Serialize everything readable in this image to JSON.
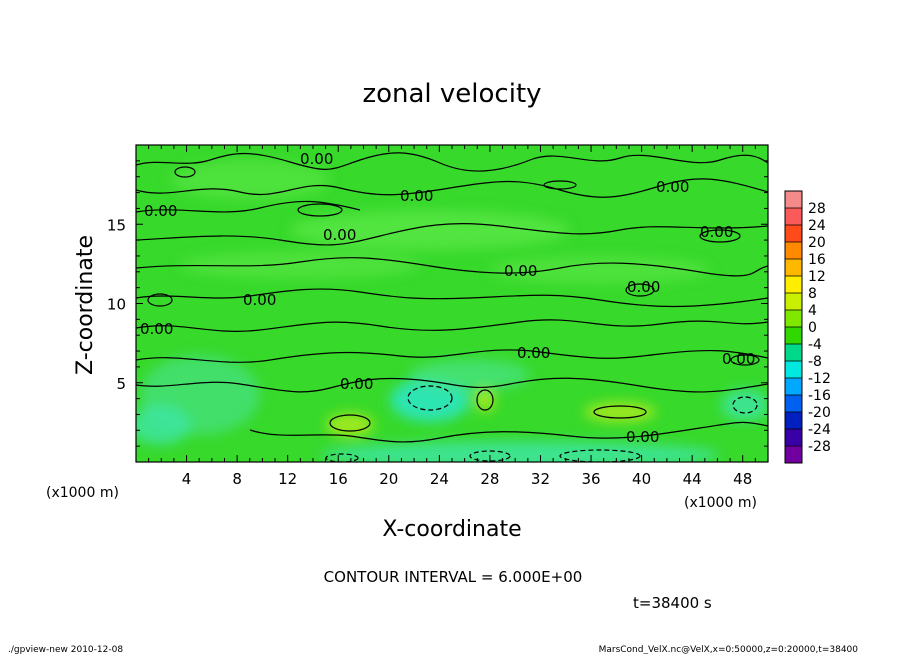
{
  "chart_data": {
    "type": "heatmap",
    "title": "zonal velocity",
    "xlabel": "X-coordinate",
    "ylabel": "Z-coordinate",
    "x_unit": "(x1000 m)",
    "x_unit_right": "(x1000 m)",
    "y_unit": "(x1000 m)",
    "xlim": [
      0,
      50
    ],
    "ylim": [
      0,
      20
    ],
    "x_ticks": [
      4,
      8,
      12,
      16,
      20,
      24,
      28,
      32,
      36,
      40,
      44,
      48
    ],
    "y_ticks": [
      5,
      10,
      15
    ],
    "colorbar_levels": [
      28,
      24,
      20,
      16,
      12,
      8,
      4,
      0,
      -4,
      -8,
      -12,
      -16,
      -20,
      -24,
      -28
    ],
    "colorbar_colors": [
      "#f58a8a",
      "#fb5a5a",
      "#ff4a1a",
      "#ff8a00",
      "#ffb800",
      "#ffee00",
      "#c8f000",
      "#80e800",
      "#30d800",
      "#00d88a",
      "#00e8e0",
      "#00a8ff",
      "#0060f0",
      "#0020c0",
      "#3a00a8",
      "#7000a0"
    ],
    "contour_label": "0.00",
    "contour_interval_text": "CONTOUR INTERVAL = 6.000E+00",
    "time_text": "t=38400 s",
    "footer_left": "./gpview-new  2010-12-08",
    "footer_right": "MarsCond_VelX.nc@VelX,x=0:50000,z=0:20000,t=38400"
  }
}
